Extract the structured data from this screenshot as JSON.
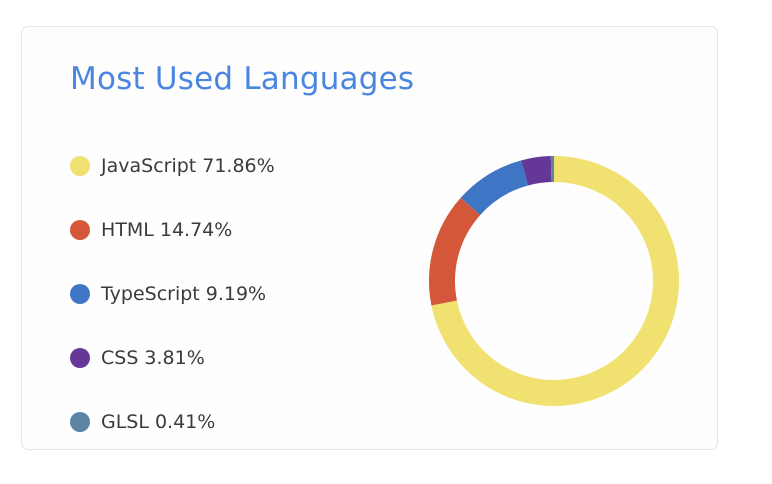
{
  "card": {
    "title": "Most Used Languages"
  },
  "chart_data": {
    "type": "pie",
    "title": "Most Used Languages",
    "legend_position": "left",
    "donut": true,
    "series": [
      {
        "name": "JavaScript",
        "value": 71.86,
        "label": "71.86%",
        "color": "#f1e170"
      },
      {
        "name": "HTML",
        "value": 14.74,
        "label": "14.74%",
        "color": "#d4573a"
      },
      {
        "name": "TypeScript",
        "value": 9.19,
        "label": "9.19%",
        "color": "#3f75c5"
      },
      {
        "name": "CSS",
        "value": 3.81,
        "label": "3.81%",
        "color": "#653796"
      },
      {
        "name": "GLSL",
        "value": 0.41,
        "label": "0.41%",
        "color": "#5d83a4"
      }
    ]
  }
}
